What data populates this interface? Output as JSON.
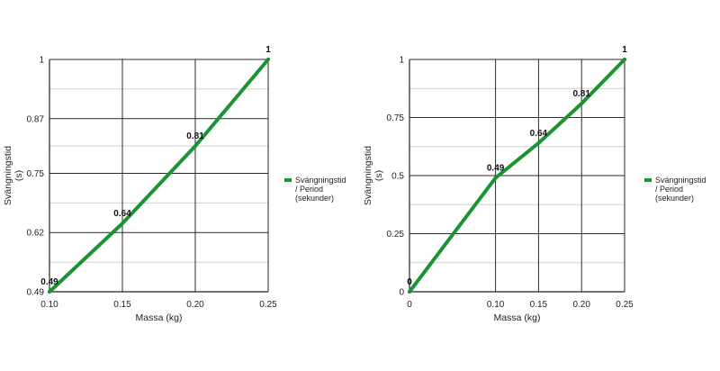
{
  "chart_data": [
    {
      "type": "line",
      "xlabel": "Massa (kg)",
      "ylabel": "Svängningstid (s)",
      "x": [
        0.1,
        0.15,
        0.2,
        0.25
      ],
      "x_tick_labels": [
        "0.10",
        "0.15",
        "0.20",
        "0.25"
      ],
      "y_tick_values": [
        0.49,
        0.62,
        0.75,
        0.87,
        1
      ],
      "y_tick_labels": [
        "0.49",
        "0.62",
        "0.75",
        "0.87",
        "1"
      ],
      "ylim": [
        0.49,
        1
      ],
      "xlim": [
        0.1,
        0.25
      ],
      "grid": true,
      "legend_position": "right",
      "series": [
        {
          "name": "Svängningstid / Period (sekunder)",
          "color": "#1a9432",
          "points": [
            {
              "x": 0.1,
              "y": 0.49,
              "label": "0.49"
            },
            {
              "x": 0.15,
              "y": 0.64,
              "label": "0.64"
            },
            {
              "x": 0.2,
              "y": 0.81,
              "label": "0.81"
            },
            {
              "x": 0.25,
              "y": 1,
              "label": "1"
            }
          ]
        }
      ]
    },
    {
      "type": "line",
      "xlabel": "Massa (kg)",
      "ylabel": "Svängningstid (s)",
      "x": [
        0,
        0.1,
        0.15,
        0.2,
        0.25
      ],
      "x_tick_labels": [
        "0",
        "0.10",
        "0.15",
        "0.20",
        "0.25"
      ],
      "y_tick_values": [
        0,
        0.25,
        0.5,
        0.75,
        1
      ],
      "y_tick_labels": [
        "0",
        "0.25",
        "0.5",
        "0.75",
        "1"
      ],
      "ylim": [
        0,
        1
      ],
      "xlim": [
        0,
        0.25
      ],
      "grid": true,
      "legend_position": "right",
      "series": [
        {
          "name": "Svängningstid / Period (sekunder)",
          "color": "#1a9432",
          "points": [
            {
              "x": 0,
              "y": 0,
              "label": "0"
            },
            {
              "x": 0.1,
              "y": 0.49,
              "label": "0.49"
            },
            {
              "x": 0.15,
              "y": 0.64,
              "label": "0.64"
            },
            {
              "x": 0.2,
              "y": 0.81,
              "label": "0.81"
            },
            {
              "x": 0.25,
              "y": 1,
              "label": "1"
            }
          ]
        }
      ]
    }
  ],
  "legend_lines": [
    "Svängningstid",
    "/ Period",
    "(sekunder)"
  ],
  "ylabel_lines": [
    "Svängningstid",
    "(s)"
  ]
}
